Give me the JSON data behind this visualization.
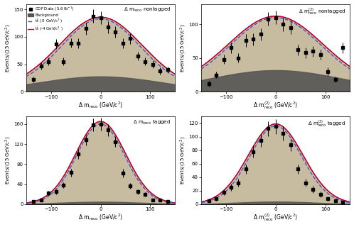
{
  "xlim": [
    -150,
    150
  ],
  "xlabel_reco": "Δ m$_\\mathrm{reco}$ (GeV/c$^2$)",
  "xlabel_reco2": "Δ m$^{(2)}_\\mathrm{reco}$ (GeV/c$^2$)",
  "ylabel": "Events/(15 GeV/c$^2$)",
  "panels": [
    {
      "title": "Δ m$_\\mathrm{reco}$ nontagged",
      "ylim": [
        0,
        160
      ],
      "yticks": [
        0,
        50,
        100,
        150
      ],
      "data_x": [
        -135,
        -120,
        -105,
        -90,
        -75,
        -60,
        -45,
        -30,
        -15,
        0,
        15,
        30,
        45,
        60,
        75,
        90,
        105,
        120,
        135
      ],
      "data_y": [
        22,
        47,
        55,
        87,
        55,
        89,
        88,
        115,
        138,
        135,
        118,
        109,
        88,
        97,
        65,
        55,
        50,
        38,
        40
      ],
      "data_yerr": [
        5,
        7,
        7,
        9,
        7,
        9,
        9,
        11,
        12,
        12,
        11,
        10,
        9,
        10,
        8,
        7,
        7,
        6,
        6
      ],
      "bg_amp": 28,
      "bg_sig": 125,
      "tot0_amp": 105,
      "tot0_sig": 75,
      "totm4_amp": 108,
      "totm4_sig": 80,
      "has_legend": true
    },
    {
      "title": "Δ m$^{(2)}_\\mathrm{reco}$ nontagged",
      "ylim": [
        0,
        130
      ],
      "yticks": [
        0,
        50,
        100
      ],
      "data_x": [
        -135,
        -120,
        -105,
        -90,
        -75,
        -60,
        -45,
        -30,
        -15,
        0,
        15,
        30,
        45,
        60,
        75,
        90,
        105,
        120,
        135
      ],
      "data_y": [
        12,
        25,
        48,
        65,
        50,
        76,
        78,
        85,
        108,
        110,
        100,
        95,
        62,
        58,
        60,
        55,
        30,
        18,
        65
      ],
      "data_yerr": [
        4,
        5,
        7,
        8,
        7,
        9,
        9,
        9,
        10,
        10,
        10,
        10,
        8,
        8,
        8,
        7,
        6,
        4,
        8
      ],
      "bg_amp": 32,
      "bg_sig": 135,
      "tot0_amp": 78,
      "tot0_sig": 85,
      "totm4_amp": 80,
      "totm4_sig": 90,
      "has_legend": false
    },
    {
      "title": "Δ m$_\\mathrm{reco}$ tagged",
      "ylim": [
        0,
        175
      ],
      "yticks": [
        0,
        40,
        80,
        120,
        160
      ],
      "data_x": [
        -135,
        -120,
        -105,
        -90,
        -75,
        -60,
        -45,
        -30,
        -15,
        0,
        15,
        30,
        45,
        60,
        75,
        90,
        105,
        120,
        135
      ],
      "data_y": [
        5,
        8,
        22,
        25,
        38,
        63,
        100,
        128,
        158,
        160,
        148,
        125,
        62,
        37,
        25,
        20,
        8,
        8,
        5
      ],
      "data_yerr": [
        2,
        3,
        5,
        5,
        6,
        8,
        10,
        11,
        13,
        13,
        12,
        11,
        8,
        6,
        5,
        4,
        3,
        3,
        2
      ],
      "bg_amp": 5,
      "bg_sig": 85,
      "tot0_amp": 155,
      "tot0_sig": 48,
      "totm4_amp": 160,
      "totm4_sig": 50,
      "has_legend": false
    },
    {
      "title": "Δ m$^{(2)}_\\mathrm{reco}$ tagged",
      "ylim": [
        0,
        130
      ],
      "yticks": [
        0,
        20,
        40,
        60,
        80,
        100,
        120
      ],
      "data_x": [
        -135,
        -120,
        -105,
        -90,
        -75,
        -60,
        -45,
        -30,
        -15,
        0,
        15,
        30,
        45,
        60,
        75,
        90,
        105,
        120,
        135
      ],
      "data_y": [
        5,
        8,
        18,
        25,
        32,
        52,
        78,
        95,
        112,
        115,
        105,
        88,
        52,
        32,
        22,
        15,
        8,
        5,
        3
      ],
      "data_yerr": [
        2,
        3,
        4,
        5,
        6,
        7,
        9,
        10,
        11,
        11,
        10,
        9,
        7,
        6,
        5,
        4,
        3,
        2,
        2
      ],
      "bg_amp": 4,
      "bg_sig": 80,
      "tot0_amp": 112,
      "tot0_sig": 52,
      "totm4_amp": 115,
      "totm4_sig": 55,
      "has_legend": false
    }
  ],
  "color_bg_dark": "#555555",
  "color_sig_fill": "#c8bca0",
  "color_blue": "#4444dd",
  "color_red": "#cc0000",
  "color_purple": "#8800bb",
  "legend_labels": [
    "CDF Data (5.6 fb$^{-1}$)",
    "Background",
    "t$\\bar{\\mathrm{t}}$ ( 0 GeV/c$^2$ )",
    "t$\\bar{\\mathrm{t}}$ (-4 GeV/c$^2$ )"
  ]
}
